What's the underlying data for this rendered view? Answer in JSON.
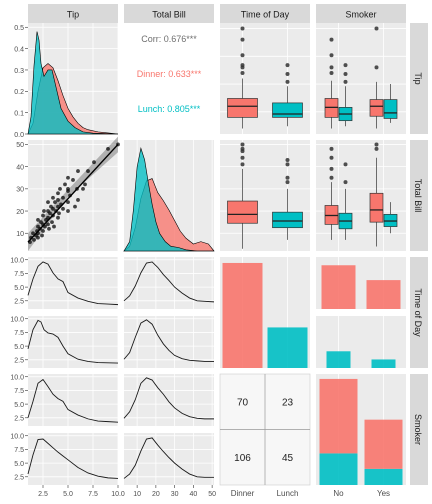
{
  "chart_data": {
    "type": "scatterplot-matrix",
    "column_strips": [
      "Tip",
      "Total Bill",
      "Time of Day",
      "Smoker"
    ],
    "row_strips": [
      "Tip",
      "Total Bill",
      "Time of Day",
      "Smoker"
    ],
    "colors": {
      "dinner": "#F8766D",
      "lunch": "#00BFC4",
      "panel_bg": "#EBEBEB",
      "strip_bg": "#D9D9D9",
      "grid": "#FFFFFF",
      "points": "#000000"
    },
    "panels": {
      "tip_tip": {
        "type": "density",
        "xlim": [
          1,
          10
        ],
        "ylim": [
          0,
          0.52
        ],
        "y_ticks": [
          "0.0",
          "0.1",
          "0.2",
          "0.3",
          "0.4",
          "0.5"
        ],
        "series": [
          {
            "group": "Dinner",
            "x": [
              1,
              1.5,
              2,
              2.5,
              3,
              3.5,
              4,
              4.5,
              5,
              5.5,
              6,
              6.5,
              7,
              8,
              9,
              10
            ],
            "y": [
              0.0,
              0.05,
              0.2,
              0.31,
              0.33,
              0.31,
              0.25,
              0.18,
              0.12,
              0.08,
              0.05,
              0.03,
              0.02,
              0.01,
              0.005,
              0.0
            ]
          },
          {
            "group": "Lunch",
            "x": [
              1,
              1.3,
              1.6,
              1.9,
              2.1,
              2.3,
              2.6,
              3,
              3.4,
              3.8,
              4.3,
              5,
              5.7,
              6.5,
              7.5,
              10
            ],
            "y": [
              0.0,
              0.08,
              0.32,
              0.48,
              0.44,
              0.33,
              0.27,
              0.3,
              0.3,
              0.22,
              0.12,
              0.06,
              0.03,
              0.01,
              0.004,
              0.0
            ]
          }
        ]
      },
      "tip_totalbill": {
        "type": "correlation",
        "corr_text": "Corr: 0.676***",
        "dinner_text": "Dinner: 0.633***",
        "lunch_text": "Lunch: 0.805***"
      },
      "tip_time": {
        "type": "boxplot",
        "ylim": [
          0.5,
          10.5
        ],
        "boxes": [
          {
            "group": "Dinner",
            "x": "Dinner",
            "q1": 2.0,
            "median": 3.0,
            "q3": 3.7,
            "lo": 1.0,
            "hi": 5.5,
            "outliers": [
              6,
              6.5,
              6.7,
              7.6,
              9,
              10
            ]
          },
          {
            "group": "Lunch",
            "x": "Lunch",
            "q1": 2.0,
            "median": 2.3,
            "q3": 3.3,
            "lo": 1.2,
            "hi": 4.8,
            "outliers": [
              5.2,
              5.9,
              6.7
            ]
          }
        ]
      },
      "tip_smoker": {
        "type": "boxplot",
        "ylim": [
          0.5,
          10.5
        ],
        "boxes": [
          {
            "group": "Dinner",
            "x": "No",
            "q1": 2.0,
            "median": 2.9,
            "q3": 3.7,
            "lo": 1.0,
            "hi": 5.3,
            "outliers": [
              6,
              6.5,
              7.6,
              9
            ]
          },
          {
            "group": "Lunch",
            "x": "No",
            "q1": 1.7,
            "median": 2.3,
            "q3": 2.9,
            "lo": 1.2,
            "hi": 4.8,
            "outliers": [
              5.2,
              5.9,
              6.7
            ]
          },
          {
            "group": "Dinner",
            "x": "Yes",
            "q1": 2.1,
            "median": 3.0,
            "q3": 3.6,
            "lo": 1.0,
            "hi": 5.2,
            "outliers": [
              6.5,
              10
            ]
          },
          {
            "group": "Lunch",
            "x": "Yes",
            "q1": 1.9,
            "median": 2.4,
            "q3": 3.6,
            "lo": 1.5,
            "hi": 5.0,
            "outliers": []
          }
        ]
      },
      "totalbill_tip": {
        "type": "scatter",
        "xlim": [
          1,
          10
        ],
        "ylim": [
          2,
          52
        ],
        "y_ticks": [
          "10",
          "20",
          "30",
          "40",
          "50"
        ],
        "fit": {
          "x": [
            1,
            10
          ],
          "y": [
            6,
            50
          ]
        },
        "points": [
          [
            1.2,
            6
          ],
          [
            1.3,
            8
          ],
          [
            1.5,
            10
          ],
          [
            1.6,
            7
          ],
          [
            1.8,
            9
          ],
          [
            1.9,
            11
          ],
          [
            2,
            13
          ],
          [
            2,
            10
          ],
          [
            2,
            16
          ],
          [
            2,
            8
          ],
          [
            2.2,
            12
          ],
          [
            2.3,
            15
          ],
          [
            2.4,
            9
          ],
          [
            2.5,
            18
          ],
          [
            2.5,
            14
          ],
          [
            2.5,
            11
          ],
          [
            2.6,
            20
          ],
          [
            2.7,
            13
          ],
          [
            2.8,
            16
          ],
          [
            3,
            17
          ],
          [
            3,
            20
          ],
          [
            3,
            14
          ],
          [
            3,
            24
          ],
          [
            3.1,
            12
          ],
          [
            3.2,
            19
          ],
          [
            3.3,
            22
          ],
          [
            3.4,
            15
          ],
          [
            3.5,
            18
          ],
          [
            3.5,
            26
          ],
          [
            3.5,
            21
          ],
          [
            3.6,
            13
          ],
          [
            3.7,
            24
          ],
          [
            3.8,
            20
          ],
          [
            4,
            22
          ],
          [
            4,
            28
          ],
          [
            4,
            17
          ],
          [
            4,
            25
          ],
          [
            4.1,
            19
          ],
          [
            4.2,
            30
          ],
          [
            4.3,
            23
          ],
          [
            4.5,
            26
          ],
          [
            4.5,
            21
          ],
          [
            4.7,
            32
          ],
          [
            5,
            24
          ],
          [
            5,
            29
          ],
          [
            5,
            20
          ],
          [
            5,
            35
          ],
          [
            5,
            30
          ],
          [
            5.2,
            27
          ],
          [
            5.5,
            34
          ],
          [
            5.7,
            22
          ],
          [
            5.9,
            30
          ],
          [
            6,
            25
          ],
          [
            6,
            38
          ],
          [
            6.5,
            30
          ],
          [
            6.7,
            32
          ],
          [
            7,
            38
          ],
          [
            7.6,
            42
          ],
          [
            9,
            48
          ],
          [
            10,
            50
          ]
        ]
      },
      "totalbill_totalbill": {
        "type": "density",
        "xlim": [
          3,
          51
        ],
        "series": [
          {
            "group": "Dinner",
            "x": [
              3,
              6,
              9,
              12,
              15,
              18,
              21,
              24,
              27,
              30,
              33,
              36,
              40,
              44,
              48,
              51
            ],
            "y": [
              0.0,
              0.004,
              0.02,
              0.045,
              0.06,
              0.062,
              0.05,
              0.043,
              0.035,
              0.026,
              0.017,
              0.011,
              0.006,
              0.008,
              0.006,
              0.0
            ]
          },
          {
            "group": "Lunch",
            "x": [
              3,
              6,
              8,
              10,
              12,
              14,
              16,
              18,
              20,
              22,
              25,
              28,
              32,
              36,
              42,
              51
            ],
            "y": [
              0.0,
              0.008,
              0.035,
              0.072,
              0.088,
              0.078,
              0.058,
              0.04,
              0.025,
              0.015,
              0.008,
              0.004,
              0.003,
              0.001,
              0.0,
              0.0
            ]
          }
        ]
      },
      "totalbill_time": {
        "type": "boxplot",
        "ylim": [
          2,
          52
        ],
        "boxes": [
          {
            "group": "Dinner",
            "x": "Dinner",
            "q1": 14.5,
            "median": 18.5,
            "q3": 24.5,
            "lo": 3,
            "hi": 39,
            "outliers": [
              41,
              44,
              47,
              48,
              50
            ]
          },
          {
            "group": "Lunch",
            "x": "Lunch",
            "q1": 12.5,
            "median": 15.5,
            "q3": 19.5,
            "lo": 7,
            "hi": 30,
            "outliers": [
              33,
              35,
              41,
              43
            ]
          }
        ]
      },
      "totalbill_smoker": {
        "type": "boxplot",
        "ylim": [
          2,
          52
        ],
        "boxes": [
          {
            "group": "Dinner",
            "x": "No",
            "q1": 14,
            "median": 18,
            "q3": 22.5,
            "lo": 7,
            "hi": 33,
            "outliers": [
              35,
              39,
              44,
              48
            ]
          },
          {
            "group": "Lunch",
            "x": "No",
            "q1": 12,
            "median": 15.5,
            "q3": 19,
            "lo": 7,
            "hi": 30,
            "outliers": [
              33,
              41
            ]
          },
          {
            "group": "Dinner",
            "x": "Yes",
            "q1": 15,
            "median": 20.5,
            "q3": 28,
            "lo": 4,
            "hi": 44,
            "outliers": [
              48,
              50
            ]
          },
          {
            "group": "Lunch",
            "x": "Yes",
            "q1": 13,
            "median": 15.5,
            "q3": 18.5,
            "lo": 10,
            "hi": 24,
            "outliers": []
          }
        ]
      },
      "time_tip": {
        "type": "density-facets",
        "xlim": [
          1,
          10
        ],
        "ylim": [
          1,
          10.5
        ],
        "facet_ticks": [
          "2.5",
          "5.0",
          "7.5",
          "10.0"
        ],
        "facets": [
          {
            "x": [
              1,
              1.5,
              2,
              2.5,
              3,
              3.5,
              4,
              4.5,
              5,
              6,
              7,
              8,
              9,
              10
            ],
            "y": [
              3.5,
              6.5,
              8.8,
              9.6,
              9.2,
              7.6,
              6.5,
              6.0,
              4.0,
              3.0,
              2.4,
              2.0,
              1.9,
              1.8
            ]
          },
          {
            "x": [
              1,
              1.5,
              2,
              2.3,
              2.6,
              3,
              3.5,
              4,
              4.5,
              5,
              6,
              7,
              8,
              10
            ],
            "y": [
              4.5,
              8.0,
              9.7,
              9.4,
              8.0,
              7.4,
              7.2,
              6.6,
              5.0,
              3.6,
              2.6,
              2.2,
              2.0,
              1.9
            ]
          }
        ]
      },
      "time_totalbill": {
        "type": "density-facets",
        "xlim": [
          3,
          51
        ],
        "ylim": [
          1,
          10.5
        ],
        "facets": [
          {
            "x": [
              3,
              6,
              9,
              12,
              15,
              18,
              21,
              24,
              27,
              30,
              34,
              38,
              42,
              46,
              51
            ],
            "y": [
              2.5,
              3.4,
              5.2,
              7.6,
              9.4,
              9.6,
              8.6,
              7.3,
              6.2,
              5.0,
              3.9,
              3.0,
              2.5,
              2.4,
              2.3
            ]
          },
          {
            "x": [
              3,
              6,
              9,
              12,
              15,
              18,
              21,
              24,
              27,
              30,
              34,
              38,
              42,
              46,
              51
            ],
            "y": [
              2.6,
              3.8,
              6.6,
              9.2,
              9.8,
              9.0,
              7.0,
              5.4,
              4.2,
              3.3,
              2.7,
              2.4,
              2.3,
              2.2,
              2.2
            ]
          }
        ]
      },
      "time_time": {
        "type": "bar",
        "categories": [
          "Dinner",
          "Lunch"
        ],
        "values": [
          176,
          68
        ],
        "ylim": [
          0,
          186
        ]
      },
      "time_smoker": {
        "type": "faceted-bar",
        "categories": [
          "No",
          "Yes"
        ],
        "facets": [
          {
            "group": "Dinner",
            "values": [
              106,
              70
            ]
          },
          {
            "group": "Lunch",
            "values": [
              45,
              23
            ]
          }
        ],
        "ylim": [
          0,
          126
        ]
      },
      "smoker_tip": {
        "type": "density-facets",
        "xlim": [
          1,
          10
        ],
        "ylim": [
          1,
          10.5
        ],
        "x_ticks": [
          "2.5",
          "5.0",
          "7.5",
          "10.0"
        ],
        "x_tick_values": [
          2.5,
          5,
          7.5,
          10
        ],
        "facet_ticks": [
          "2.5",
          "5.0",
          "7.5",
          "10.0"
        ],
        "facets": [
          {
            "x": [
              1,
              1.5,
              2,
              2.5,
              3,
              3.5,
              4,
              4.5,
              5,
              6,
              7,
              8,
              9,
              10
            ],
            "y": [
              2.5,
              5.5,
              8.8,
              9.5,
              8.2,
              6.8,
              6.0,
              5.5,
              4.0,
              3.0,
              2.3,
              1.9,
              1.8,
              1.7
            ]
          },
          {
            "x": [
              1,
              1.5,
              2,
              2.5,
              3,
              3.5,
              4,
              4.5,
              5,
              6,
              7,
              8,
              9,
              10
            ],
            "y": [
              3.0,
              6.5,
              9.3,
              9.4,
              8.6,
              7.8,
              7.0,
              6.3,
              5.6,
              4.2,
              3.2,
              2.6,
              2.3,
              2.2
            ]
          }
        ]
      },
      "smoker_totalbill": {
        "type": "density-facets",
        "xlim": [
          3,
          51
        ],
        "ylim": [
          1,
          10.5
        ],
        "x_ticks": [
          "10",
          "20",
          "30",
          "40",
          "50"
        ],
        "x_tick_values": [
          10,
          20,
          30,
          40,
          50
        ],
        "facets": [
          {
            "x": [
              3,
              6,
              9,
              12,
              15,
              18,
              21,
              24,
              27,
              30,
              34,
              38,
              42,
              46,
              51
            ],
            "y": [
              2.4,
              3.6,
              5.8,
              8.8,
              9.8,
              9.4,
              8.0,
              6.8,
              5.4,
              4.3,
              3.3,
              2.7,
              2.4,
              2.3,
              2.3
            ]
          },
          {
            "x": [
              3,
              6,
              9,
              12,
              15,
              18,
              21,
              24,
              27,
              30,
              34,
              38,
              42,
              46,
              51
            ],
            "y": [
              2.2,
              3.0,
              4.6,
              7.2,
              9.4,
              9.6,
              8.3,
              7.1,
              6.0,
              5.0,
              3.9,
              3.0,
              2.5,
              2.4,
              2.4
            ]
          }
        ]
      },
      "smoker_time": {
        "type": "table",
        "x_labels": [
          "Dinner",
          "Lunch"
        ],
        "cells": [
          [
            "70",
            "23"
          ],
          [
            "106",
            "45"
          ]
        ]
      },
      "smoker_smoker": {
        "type": "stacked-bar",
        "categories": [
          "No",
          "Yes"
        ],
        "x_labels": [
          "No",
          "Yes"
        ],
        "dinner": [
          106,
          70
        ],
        "lunch": [
          45,
          23
        ],
        "ylim": [
          0,
          158
        ]
      }
    }
  }
}
